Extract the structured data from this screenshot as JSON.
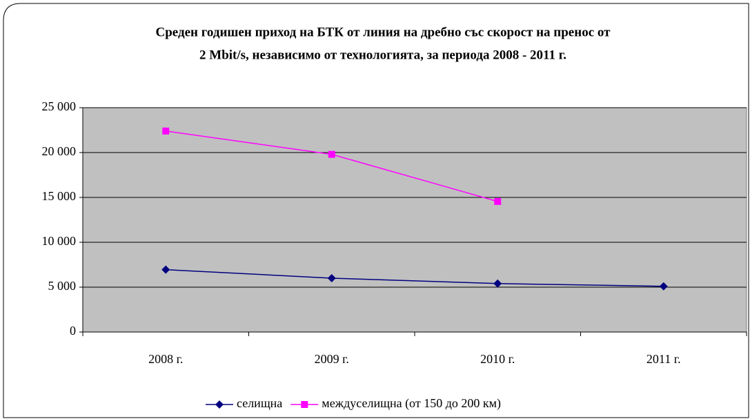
{
  "chart_data": {
    "type": "line",
    "title": [
      "Среден годишен приход на БТК от линия на дребно със скорост на пренос от",
      "2 Mbit/s, независимо от технологията, за периода 2008 - 2011 г."
    ],
    "categories": [
      "2008 г.",
      "2009 г.",
      "2010 г.",
      "2011 г."
    ],
    "series": [
      {
        "name": "селищна",
        "color": "#000080",
        "marker": "diamond",
        "values": [
          6950,
          6000,
          5400,
          5100
        ]
      },
      {
        "name": "междуселищна (от 150 до 200 км)",
        "color": "#ff00ff",
        "marker": "square",
        "values": [
          22400,
          19800,
          14550,
          null
        ]
      }
    ],
    "ylim": [
      0,
      25000
    ],
    "yticks": [
      0,
      {
        "value": 5000,
        "label": "5 000"
      },
      {
        "value": 10000,
        "label": "10 000"
      },
      {
        "value": 15000,
        "label": "15 000"
      },
      {
        "value": 20000,
        "label": "20 000"
      },
      {
        "value": 25000,
        "label": "25 000"
      }
    ],
    "grid": true,
    "legend": "bottom"
  }
}
